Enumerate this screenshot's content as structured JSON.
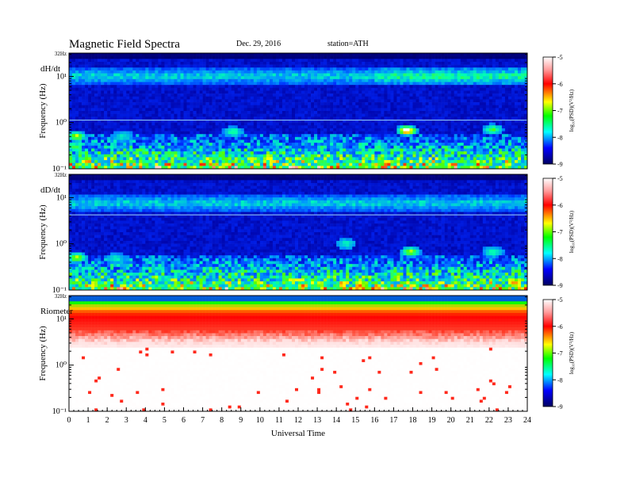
{
  "header": {
    "title": "Magnetic  Field  Spectra",
    "date": "Dec. 29, 2016",
    "station": "station=ATH"
  },
  "chart_data": [
    {
      "type": "heatmap",
      "panel_label": "dH/dt",
      "ylabel": "Frequency (Hz)",
      "yscale": "log",
      "ylim": [
        0.1,
        32
      ],
      "ytick_labels": [
        "10⁻¹",
        "10⁰",
        "10¹",
        "32Hz"
      ],
      "xlim": [
        0,
        24
      ],
      "colorbar": {
        "label": "log₁₀(PSD)(V²/Hz)",
        "range": [
          -9,
          -5
        ],
        "ticks": [
          "-5",
          "-6",
          "-7",
          "-8",
          "-9"
        ]
      },
      "colormap": [
        "#000080",
        "#0000ff",
        "#00ffff",
        "#00ff00",
        "#ffff00",
        "#ff0000",
        "#ffffff"
      ]
    },
    {
      "type": "heatmap",
      "panel_label": "dD/dt",
      "ylabel": "Frequency (Hz)",
      "yscale": "log",
      "ylim": [
        0.1,
        32
      ],
      "ytick_labels": [
        "10⁻¹",
        "10⁰",
        "10¹",
        "32Hz"
      ],
      "xlim": [
        0,
        24
      ],
      "colorbar": {
        "label": "log₁₀(PSD)(V²/Hz)",
        "range": [
          -9,
          -5
        ],
        "ticks": [
          "-5",
          "-6",
          "-7",
          "-8",
          "-9"
        ]
      },
      "colormap": [
        "#000080",
        "#0000ff",
        "#00ffff",
        "#00ff00",
        "#ffff00",
        "#ff0000",
        "#ffffff"
      ]
    },
    {
      "type": "heatmap",
      "panel_label": "Riometer",
      "ylabel": "Frequency (Hz)",
      "yscale": "log",
      "ylim": [
        0.1,
        32
      ],
      "ytick_labels": [
        "10⁻¹",
        "10⁰",
        "10¹",
        "32Hz"
      ],
      "xlim": [
        0,
        24
      ],
      "xlabel": "Universal Time",
      "xtick_labels": [
        "0",
        "1",
        "2",
        "3",
        "4",
        "5",
        "6",
        "7",
        "8",
        "9",
        "10",
        "11",
        "12",
        "13",
        "14",
        "15",
        "16",
        "17",
        "18",
        "19",
        "20",
        "21",
        "22",
        "23",
        "24"
      ],
      "colorbar": {
        "label": "log₁₀(PSD)(V²/Hz)",
        "range": [
          -9,
          -5
        ],
        "ticks": [
          "-5",
          "-6",
          "-7",
          "-8",
          "-9"
        ]
      },
      "colormap": [
        "#000080",
        "#0000ff",
        "#00ffff",
        "#00ff00",
        "#ffff00",
        "#ff0000",
        "#ffffff"
      ]
    }
  ]
}
